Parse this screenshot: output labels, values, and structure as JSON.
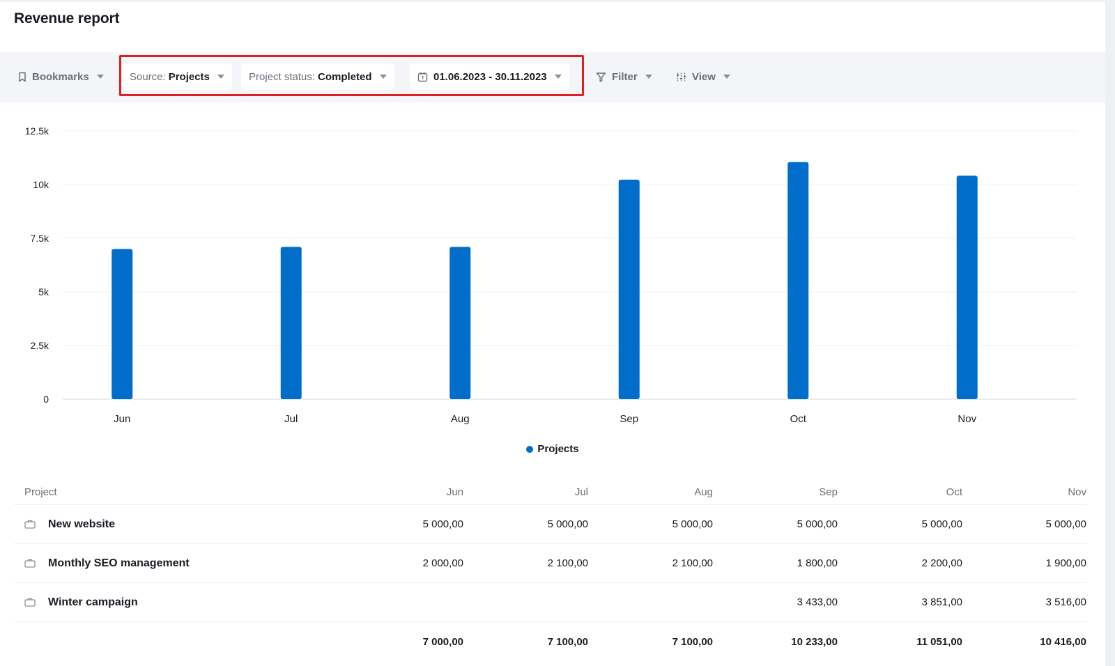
{
  "title": "Revenue report",
  "toolbar": {
    "bookmarks": "Bookmarks",
    "source_label": "Source:",
    "source_value": "Projects",
    "status_label": "Project status:",
    "status_value": "Completed",
    "date_range": "01.06.2023 - 30.11.2023",
    "filter": "Filter",
    "view": "View"
  },
  "chart_data": {
    "type": "bar",
    "categories": [
      "Jun",
      "Jul",
      "Aug",
      "Sep",
      "Oct",
      "Nov"
    ],
    "series": [
      {
        "name": "Projects",
        "color": "#006dca",
        "values": [
          7000,
          7100,
          7100,
          10233,
          11051,
          10416
        ]
      }
    ],
    "ylim": [
      0,
      12500
    ],
    "yticks": [
      0,
      2500,
      5000,
      7500,
      10000,
      12500
    ],
    "ytick_labels": [
      "0",
      "2.5k",
      "5k",
      "7.5k",
      "10k",
      "12.5k"
    ],
    "grid": true,
    "legend": "bottom-center"
  },
  "table": {
    "headers": [
      "Project",
      "Jun",
      "Jul",
      "Aug",
      "Sep",
      "Oct",
      "Nov"
    ],
    "rows": [
      {
        "name": "New website",
        "values": [
          "5 000,00",
          "5 000,00",
          "5 000,00",
          "5 000,00",
          "5 000,00",
          "5 000,00"
        ]
      },
      {
        "name": "Monthly SEO management",
        "values": [
          "2 000,00",
          "2 100,00",
          "2 100,00",
          "1 800,00",
          "2 200,00",
          "1 900,00"
        ]
      },
      {
        "name": "Winter campaign",
        "values": [
          "",
          "",
          "",
          "3 433,00",
          "3 851,00",
          "3 516,00"
        ]
      }
    ],
    "totals": [
      "7 000,00",
      "7 100,00",
      "7 100,00",
      "10 233,00",
      "11 051,00",
      "10 416,00"
    ]
  },
  "icons": {
    "bookmark": "bookmark-icon",
    "calendar": "calendar-icon",
    "filter": "filter-icon",
    "view": "view-settings-icon",
    "project": "briefcase-icon"
  }
}
